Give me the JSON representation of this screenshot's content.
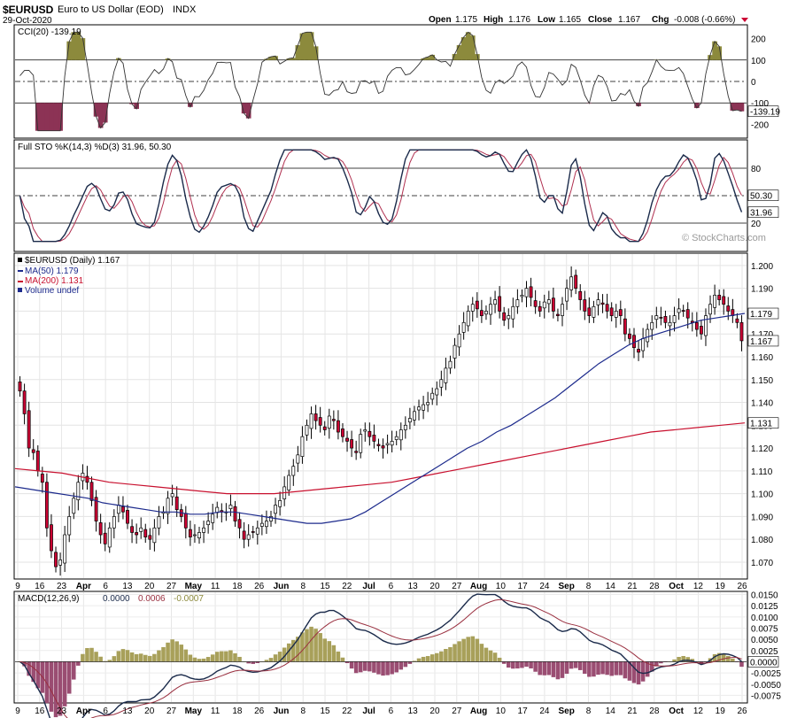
{
  "header": {
    "symbol": "$EURUSD",
    "description": "Euro to US Dollar (EOD)",
    "exchange": "INDX",
    "date": "29-Oct-2020",
    "open_label": "Open",
    "open": "1.175",
    "high_label": "High",
    "high": "1.176",
    "low_label": "Low",
    "low": "1.165",
    "close_label": "Close",
    "close": "1.167",
    "chg_label": "Chg",
    "chg": "-0.008 (-0.66%)",
    "watermark": "© StockCharts.com"
  },
  "colors": {
    "up": "#ffffff",
    "down": "#cc0033",
    "ma50": "#1c2a8c",
    "ma200": "#c8102e",
    "cci_pos": "#8c8a3c",
    "cci_neg": "#8c3355",
    "macd_hist_pos": "#a8a05a",
    "macd_hist_neg": "#9a4d72",
    "macd_line": "#1a2a4a",
    "signal_line": "#9a3040"
  },
  "panels": {
    "cci": {
      "legend": "CCI(20) -139.19",
      "last_tag": "-139.19",
      "ticks": [
        "200",
        "100",
        "0",
        "-100",
        "-200"
      ]
    },
    "sto": {
      "legend": "Full STO %K(14,3) %D(3) 31.96, 50.30",
      "k_tag": "31.96",
      "d_tag": "50.30",
      "ticks": [
        "80",
        "20"
      ]
    },
    "price": {
      "legend_symbol": "$EURUSD (Daily) 1.167",
      "legend_ma50": "MA(50) 1.179",
      "legend_ma200": "MA(200) 1.131",
      "legend_volume": "Volume undef",
      "ma50_tag": "1.179",
      "close_tag": "1.167",
      "ma200_tag": "1.131",
      "ticks": [
        "1.200",
        "1.190",
        "1.180",
        "1.170",
        "1.160",
        "1.150",
        "1.140",
        "1.130",
        "1.120",
        "1.110",
        "1.100",
        "1.090",
        "1.080",
        "1.070"
      ]
    },
    "macd": {
      "legend_name": "MACD(12,26,9)",
      "legend_macd": "0.0000",
      "legend_signal": "0.0006",
      "legend_hist": "-0.0007",
      "last_tag": "0.0000",
      "ticks": [
        "0.0150",
        "0.0125",
        "0.0100",
        "0.0075",
        "0.0050",
        "0.0025",
        "0.0000",
        "-0.0025",
        "-0.0050",
        "-0.0075"
      ]
    }
  },
  "x_axis_labels": [
    "9",
    "16",
    "23",
    "Apr",
    "6",
    "13",
    "20",
    "27",
    "May",
    "11",
    "18",
    "26",
    "Jun",
    "8",
    "15",
    "22",
    "Jul",
    "6",
    "13",
    "20",
    "27",
    "Aug",
    "10",
    "17",
    "24",
    "Sep",
    "8",
    "14",
    "21",
    "28",
    "Oct",
    "12",
    "19",
    "26"
  ],
  "chart_data": {
    "type": "candlestick",
    "title": "$EURUSD Euro to US Dollar (EOD) INDX",
    "period": "Daily",
    "x_range": [
      "2020-03-09",
      "2020-10-29"
    ],
    "y_range": [
      1.063,
      1.205
    ],
    "last_bar": {
      "date": "2020-10-29",
      "open": 1.175,
      "high": 1.176,
      "low": 1.165,
      "close": 1.167,
      "change": -0.008,
      "change_pct": -0.66
    },
    "price_path_approx": [
      1.145,
      1.135,
      1.12,
      1.118,
      1.11,
      1.105,
      1.085,
      1.075,
      1.068,
      1.071,
      1.082,
      1.09,
      1.098,
      1.105,
      1.109,
      1.105,
      1.097,
      1.088,
      1.082,
      1.078,
      1.085,
      1.09,
      1.095,
      1.092,
      1.087,
      1.083,
      1.082,
      1.085,
      1.081,
      1.08,
      1.085,
      1.09,
      1.092,
      1.098,
      1.1,
      1.093,
      1.09,
      1.085,
      1.081,
      1.082,
      1.083,
      1.085,
      1.088,
      1.091,
      1.094,
      1.092,
      1.092,
      1.095,
      1.088,
      1.085,
      1.08,
      1.082,
      1.083,
      1.085,
      1.087,
      1.088,
      1.09,
      1.095,
      1.097,
      1.103,
      1.108,
      1.112,
      1.117,
      1.125,
      1.13,
      1.135,
      1.132,
      1.13,
      1.128,
      1.134,
      1.132,
      1.127,
      1.125,
      1.123,
      1.12,
      1.118,
      1.126,
      1.128,
      1.125,
      1.123,
      1.121,
      1.12,
      1.122,
      1.123,
      1.125,
      1.128,
      1.13,
      1.133,
      1.136,
      1.138,
      1.139,
      1.14,
      1.144,
      1.146,
      1.15,
      1.155,
      1.158,
      1.165,
      1.17,
      1.175,
      1.18,
      1.183,
      1.181,
      1.178,
      1.18,
      1.183,
      1.185,
      1.18,
      1.176,
      1.178,
      1.182,
      1.185,
      1.187,
      1.19,
      1.186,
      1.182,
      1.18,
      1.184,
      1.185,
      1.18,
      1.178,
      1.183,
      1.19,
      1.195,
      1.19,
      1.185,
      1.18,
      1.178,
      1.182,
      1.185,
      1.183,
      1.18,
      1.178,
      1.18,
      1.178,
      1.17,
      1.168,
      1.164,
      1.162,
      1.168,
      1.172,
      1.175,
      1.178,
      1.177,
      1.175,
      1.175,
      1.178,
      1.181,
      1.18,
      1.177,
      1.175,
      1.172,
      1.17,
      1.178,
      1.183,
      1.187,
      1.185,
      1.183,
      1.18,
      1.178,
      1.175,
      1.167
    ],
    "ma50_path_approx": [
      1.103,
      1.102,
      1.101,
      1.1,
      1.099,
      1.098,
      1.096,
      1.095,
      1.094,
      1.093,
      1.092,
      1.092,
      1.091,
      1.091,
      1.092,
      1.092,
      1.091,
      1.09,
      1.089,
      1.088,
      1.087,
      1.087,
      1.088,
      1.089,
      1.092,
      1.096,
      1.1,
      1.104,
      1.108,
      1.112,
      1.116,
      1.12,
      1.123,
      1.127,
      1.13,
      1.134,
      1.138,
      1.142,
      1.147,
      1.152,
      1.157,
      1.161,
      1.165,
      1.168,
      1.17,
      1.172,
      1.174,
      1.176,
      1.177,
      1.178,
      1.179
    ],
    "ma200_path_approx": [
      1.111,
      1.11,
      1.109,
      1.107,
      1.105,
      1.104,
      1.103,
      1.102,
      1.101,
      1.1,
      1.1,
      1.1,
      1.101,
      1.102,
      1.103,
      1.104,
      1.105,
      1.107,
      1.109,
      1.111,
      1.113,
      1.115,
      1.117,
      1.119,
      1.121,
      1.123,
      1.125,
      1.127,
      1.128,
      1.129,
      1.13,
      1.131
    ],
    "cci_last": -139.19,
    "stochastic": {
      "k": 31.96,
      "d": 50.3
    },
    "ma50_last": 1.179,
    "ma200_last": 1.131,
    "macd": {
      "macd": 0.0,
      "signal": 0.0006,
      "histogram": -0.0007
    }
  }
}
